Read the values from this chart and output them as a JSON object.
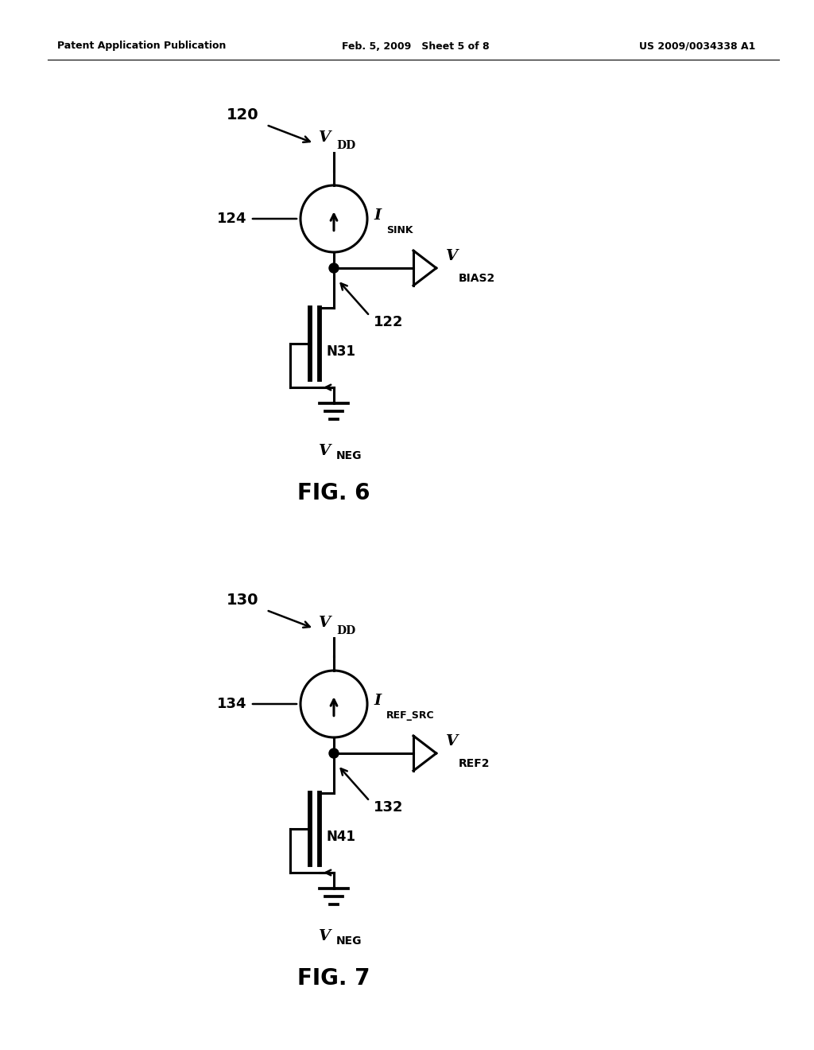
{
  "bg_color": "#ffffff",
  "line_color": "#000000",
  "header": {
    "left": "Patent Application Publication",
    "center": "Feb. 5, 2009   Sheet 5 of 8",
    "right": "US 2009/0034338 A1"
  },
  "fig6": {
    "fig_num_label": "120",
    "cs_num_label": "124",
    "current_main": "I",
    "current_sub": "SINK",
    "transistor_label": "N31",
    "node_num_label": "122",
    "vout_main": "V",
    "vout_sub": "BIAS2",
    "fig_caption": "FIG. 6"
  },
  "fig7": {
    "fig_num_label": "130",
    "cs_num_label": "134",
    "current_main": "I",
    "current_sub": "REF_SRC",
    "transistor_label": "N41",
    "node_num_label": "132",
    "vout_main": "V",
    "vout_sub": "REF2",
    "fig_caption": "FIG. 7"
  },
  "vdd_main": "V",
  "vdd_sub": "DD",
  "vneg_main": "V",
  "vneg_sub": "NEG"
}
